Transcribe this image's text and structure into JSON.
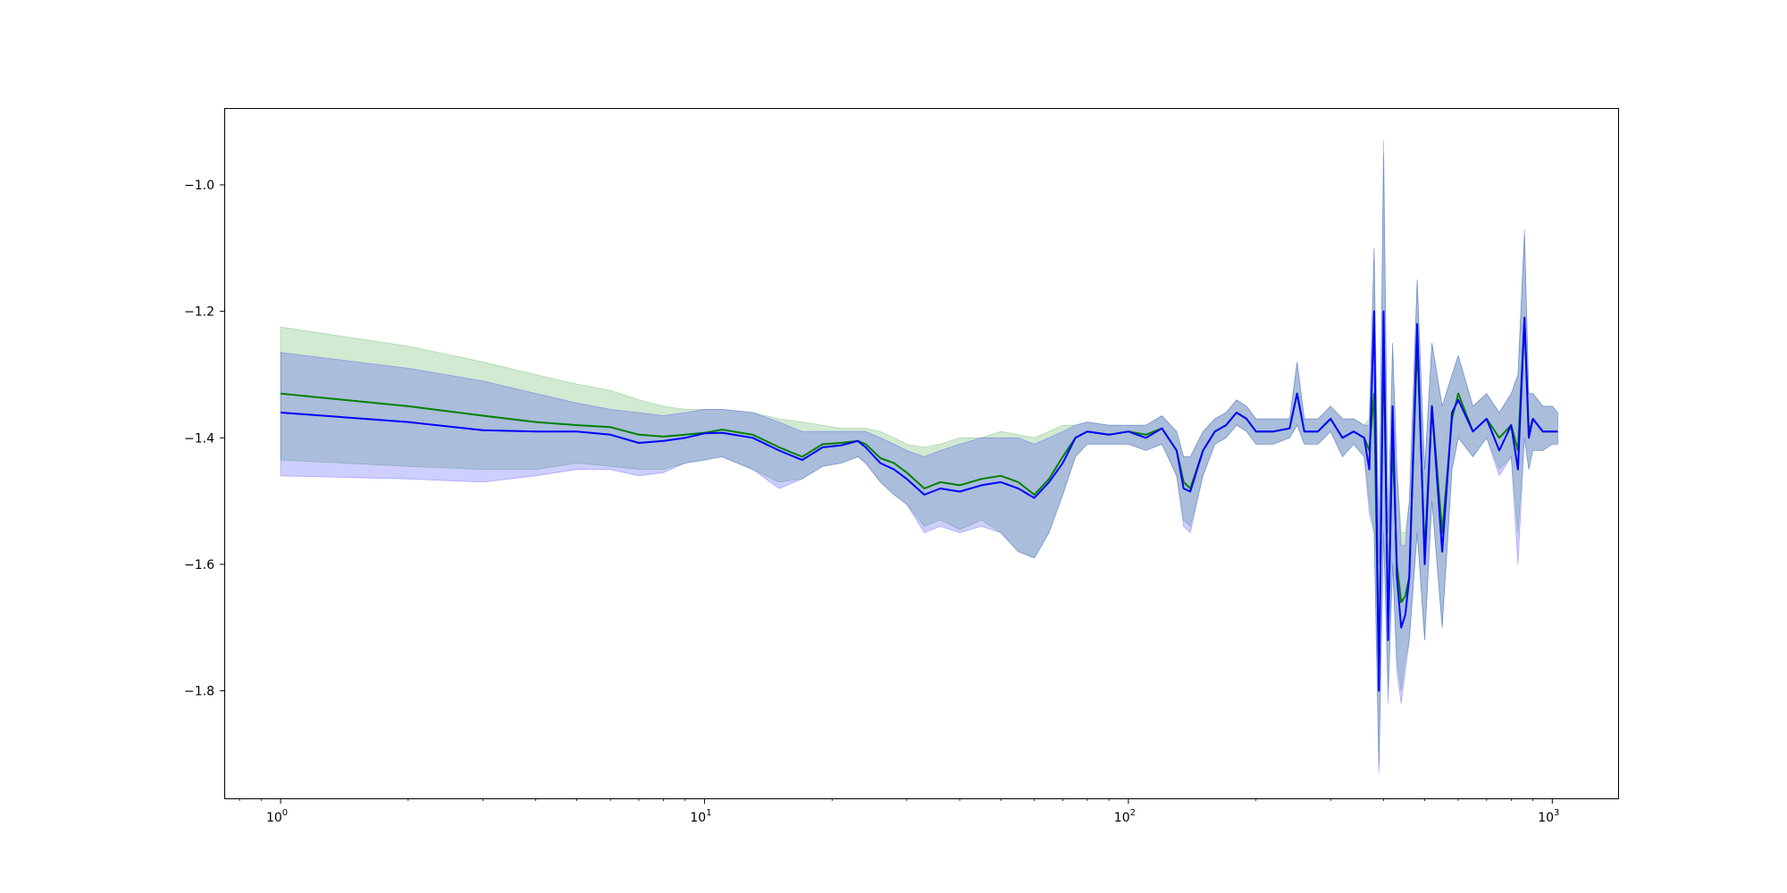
{
  "chart_data": {
    "type": "line",
    "title": "",
    "xlabel": "",
    "ylabel": "",
    "xscale": "log",
    "xlim": [
      0.74,
      1430
    ],
    "ylim": [
      -1.97,
      -0.88
    ],
    "grid": false,
    "legend": "none",
    "x_ticks": [
      {
        "base": "10",
        "exp": "0",
        "value": 1
      },
      {
        "base": "10",
        "exp": "1",
        "value": 10
      },
      {
        "base": "10",
        "exp": "2",
        "value": 100
      },
      {
        "base": "10",
        "exp": "3",
        "value": 1000
      }
    ],
    "y_ticks": [
      {
        "label": "−1.8",
        "value": -1.8
      },
      {
        "label": "−1.6",
        "value": -1.6
      },
      {
        "label": "−1.4",
        "value": -1.4
      },
      {
        "label": "−1.2",
        "value": -1.2
      },
      {
        "label": "−1.0",
        "value": -1.0
      }
    ],
    "series": [
      {
        "color": "#008000",
        "band_color": "#2ca02c",
        "x": [
          1,
          2,
          3,
          4,
          5,
          6,
          7,
          8,
          9,
          10,
          11,
          13,
          15,
          17,
          19,
          21,
          23,
          24,
          26,
          28,
          30,
          33,
          36,
          40,
          45,
          50,
          55,
          60,
          65,
          70,
          75,
          80,
          90,
          100,
          110,
          120,
          130,
          135,
          140,
          150,
          160,
          170,
          180,
          190,
          200,
          220,
          240,
          250,
          260,
          280,
          300,
          320,
          340,
          360,
          370,
          380,
          390,
          400,
          410,
          420,
          430,
          440,
          450,
          460,
          480,
          500,
          520,
          550,
          580,
          600,
          650,
          700,
          750,
          800,
          830,
          860,
          880,
          900,
          950,
          1000,
          1030
        ],
        "y": [
          -1.33,
          -1.35,
          -1.365,
          -1.375,
          -1.38,
          -1.383,
          -1.395,
          -1.398,
          -1.395,
          -1.392,
          -1.387,
          -1.395,
          -1.415,
          -1.43,
          -1.41,
          -1.408,
          -1.405,
          -1.41,
          -1.432,
          -1.44,
          -1.455,
          -1.48,
          -1.47,
          -1.475,
          -1.465,
          -1.46,
          -1.47,
          -1.49,
          -1.465,
          -1.43,
          -1.4,
          -1.39,
          -1.395,
          -1.39,
          -1.395,
          -1.385,
          -1.42,
          -1.47,
          -1.48,
          -1.42,
          -1.39,
          -1.38,
          -1.36,
          -1.37,
          -1.39,
          -1.39,
          -1.385,
          -1.33,
          -1.39,
          -1.39,
          -1.37,
          -1.4,
          -1.39,
          -1.4,
          -1.42,
          -1.33,
          -1.78,
          -1.25,
          -1.7,
          -1.4,
          -1.6,
          -1.66,
          -1.65,
          -1.62,
          -1.25,
          -1.58,
          -1.35,
          -1.55,
          -1.37,
          -1.33,
          -1.39,
          -1.37,
          -1.4,
          -1.38,
          -1.42,
          -1.21,
          -1.39,
          -1.37,
          -1.39,
          -1.39,
          -1.39
        ],
        "lower": [
          -1.435,
          -1.445,
          -1.45,
          -1.45,
          -1.44,
          -1.445,
          -1.45,
          -1.45,
          -1.44,
          -1.435,
          -1.43,
          -1.45,
          -1.47,
          -1.465,
          -1.445,
          -1.44,
          -1.43,
          -1.44,
          -1.47,
          -1.49,
          -1.505,
          -1.54,
          -1.53,
          -1.545,
          -1.53,
          -1.55,
          -1.58,
          -1.59,
          -1.55,
          -1.49,
          -1.43,
          -1.41,
          -1.41,
          -1.41,
          -1.42,
          -1.41,
          -1.46,
          -1.53,
          -1.54,
          -1.46,
          -1.41,
          -1.4,
          -1.38,
          -1.39,
          -1.41,
          -1.41,
          -1.4,
          -1.38,
          -1.41,
          -1.41,
          -1.39,
          -1.43,
          -1.41,
          -1.43,
          -1.5,
          -1.55,
          -1.92,
          -1.55,
          -1.8,
          -1.6,
          -1.75,
          -1.8,
          -1.75,
          -1.72,
          -1.55,
          -1.72,
          -1.5,
          -1.7,
          -1.45,
          -1.4,
          -1.43,
          -1.4,
          -1.45,
          -1.43,
          -1.55,
          -1.4,
          -1.45,
          -1.42,
          -1.42,
          -1.41,
          -1.41
        ],
        "upper": [
          -1.225,
          -1.255,
          -1.28,
          -1.3,
          -1.315,
          -1.325,
          -1.34,
          -1.35,
          -1.355,
          -1.355,
          -1.355,
          -1.36,
          -1.37,
          -1.375,
          -1.38,
          -1.385,
          -1.385,
          -1.385,
          -1.39,
          -1.4,
          -1.41,
          -1.415,
          -1.41,
          -1.4,
          -1.4,
          -1.39,
          -1.395,
          -1.4,
          -1.39,
          -1.38,
          -1.38,
          -1.375,
          -1.38,
          -1.38,
          -1.38,
          -1.365,
          -1.39,
          -1.43,
          -1.43,
          -1.39,
          -1.37,
          -1.36,
          -1.34,
          -1.35,
          -1.37,
          -1.37,
          -1.37,
          -1.28,
          -1.37,
          -1.37,
          -1.35,
          -1.37,
          -1.37,
          -1.38,
          -1.37,
          -1.1,
          -1.55,
          -0.95,
          -1.55,
          -1.25,
          -1.45,
          -1.55,
          -1.55,
          -1.5,
          -1.15,
          -1.45,
          -1.25,
          -1.35,
          -1.3,
          -1.27,
          -1.35,
          -1.33,
          -1.36,
          -1.33,
          -1.3,
          -1.08,
          -1.33,
          -1.33,
          -1.35,
          -1.35,
          -1.36
        ]
      },
      {
        "color": "#0000ff",
        "band_color": "#1f1fff",
        "x": [
          1,
          2,
          3,
          4,
          5,
          6,
          7,
          8,
          9,
          10,
          11,
          13,
          15,
          17,
          19,
          21,
          23,
          24,
          26,
          28,
          30,
          33,
          36,
          40,
          45,
          50,
          55,
          60,
          65,
          70,
          75,
          80,
          90,
          100,
          110,
          120,
          130,
          135,
          140,
          150,
          160,
          170,
          180,
          190,
          200,
          220,
          240,
          250,
          260,
          280,
          300,
          320,
          340,
          360,
          370,
          380,
          390,
          400,
          410,
          420,
          430,
          440,
          450,
          460,
          480,
          500,
          520,
          550,
          580,
          600,
          650,
          700,
          750,
          800,
          830,
          860,
          880,
          900,
          950,
          1000,
          1030
        ],
        "y": [
          -1.36,
          -1.375,
          -1.388,
          -1.39,
          -1.39,
          -1.395,
          -1.408,
          -1.405,
          -1.4,
          -1.393,
          -1.392,
          -1.4,
          -1.42,
          -1.435,
          -1.415,
          -1.412,
          -1.405,
          -1.415,
          -1.44,
          -1.45,
          -1.465,
          -1.49,
          -1.48,
          -1.485,
          -1.475,
          -1.47,
          -1.48,
          -1.495,
          -1.47,
          -1.44,
          -1.4,
          -1.39,
          -1.395,
          -1.39,
          -1.4,
          -1.385,
          -1.42,
          -1.48,
          -1.485,
          -1.42,
          -1.39,
          -1.38,
          -1.36,
          -1.37,
          -1.39,
          -1.39,
          -1.385,
          -1.33,
          -1.39,
          -1.39,
          -1.37,
          -1.4,
          -1.39,
          -1.4,
          -1.45,
          -1.2,
          -1.8,
          -1.2,
          -1.72,
          -1.35,
          -1.62,
          -1.7,
          -1.68,
          -1.62,
          -1.22,
          -1.6,
          -1.35,
          -1.58,
          -1.36,
          -1.34,
          -1.39,
          -1.37,
          -1.42,
          -1.38,
          -1.45,
          -1.21,
          -1.4,
          -1.37,
          -1.39,
          -1.39,
          -1.39
        ],
        "lower": [
          -1.46,
          -1.465,
          -1.47,
          -1.46,
          -1.45,
          -1.45,
          -1.46,
          -1.455,
          -1.44,
          -1.435,
          -1.43,
          -1.45,
          -1.48,
          -1.465,
          -1.445,
          -1.44,
          -1.43,
          -1.44,
          -1.47,
          -1.49,
          -1.505,
          -1.55,
          -1.54,
          -1.55,
          -1.54,
          -1.55,
          -1.58,
          -1.59,
          -1.55,
          -1.49,
          -1.43,
          -1.41,
          -1.41,
          -1.41,
          -1.42,
          -1.41,
          -1.46,
          -1.54,
          -1.55,
          -1.46,
          -1.41,
          -1.4,
          -1.38,
          -1.39,
          -1.41,
          -1.41,
          -1.4,
          -1.38,
          -1.41,
          -1.41,
          -1.39,
          -1.43,
          -1.41,
          -1.43,
          -1.52,
          -1.55,
          -1.93,
          -1.55,
          -1.82,
          -1.6,
          -1.77,
          -1.82,
          -1.77,
          -1.72,
          -1.55,
          -1.72,
          -1.5,
          -1.7,
          -1.45,
          -1.4,
          -1.43,
          -1.4,
          -1.46,
          -1.43,
          -1.6,
          -1.4,
          -1.45,
          -1.42,
          -1.42,
          -1.41,
          -1.41
        ],
        "upper": [
          -1.265,
          -1.29,
          -1.31,
          -1.33,
          -1.345,
          -1.355,
          -1.36,
          -1.365,
          -1.36,
          -1.355,
          -1.355,
          -1.36,
          -1.375,
          -1.39,
          -1.39,
          -1.39,
          -1.39,
          -1.39,
          -1.4,
          -1.41,
          -1.42,
          -1.43,
          -1.42,
          -1.41,
          -1.4,
          -1.4,
          -1.4,
          -1.41,
          -1.4,
          -1.39,
          -1.38,
          -1.375,
          -1.38,
          -1.38,
          -1.38,
          -1.365,
          -1.39,
          -1.43,
          -1.43,
          -1.39,
          -1.37,
          -1.36,
          -1.34,
          -1.35,
          -1.37,
          -1.37,
          -1.37,
          -1.28,
          -1.37,
          -1.37,
          -1.35,
          -1.37,
          -1.37,
          -1.38,
          -1.38,
          -1.1,
          -1.6,
          -0.93,
          -1.55,
          -1.25,
          -1.45,
          -1.57,
          -1.57,
          -1.5,
          -1.15,
          -1.45,
          -1.25,
          -1.35,
          -1.3,
          -1.27,
          -1.35,
          -1.33,
          -1.36,
          -1.33,
          -1.3,
          -1.07,
          -1.33,
          -1.33,
          -1.35,
          -1.35,
          -1.36
        ]
      }
    ]
  }
}
